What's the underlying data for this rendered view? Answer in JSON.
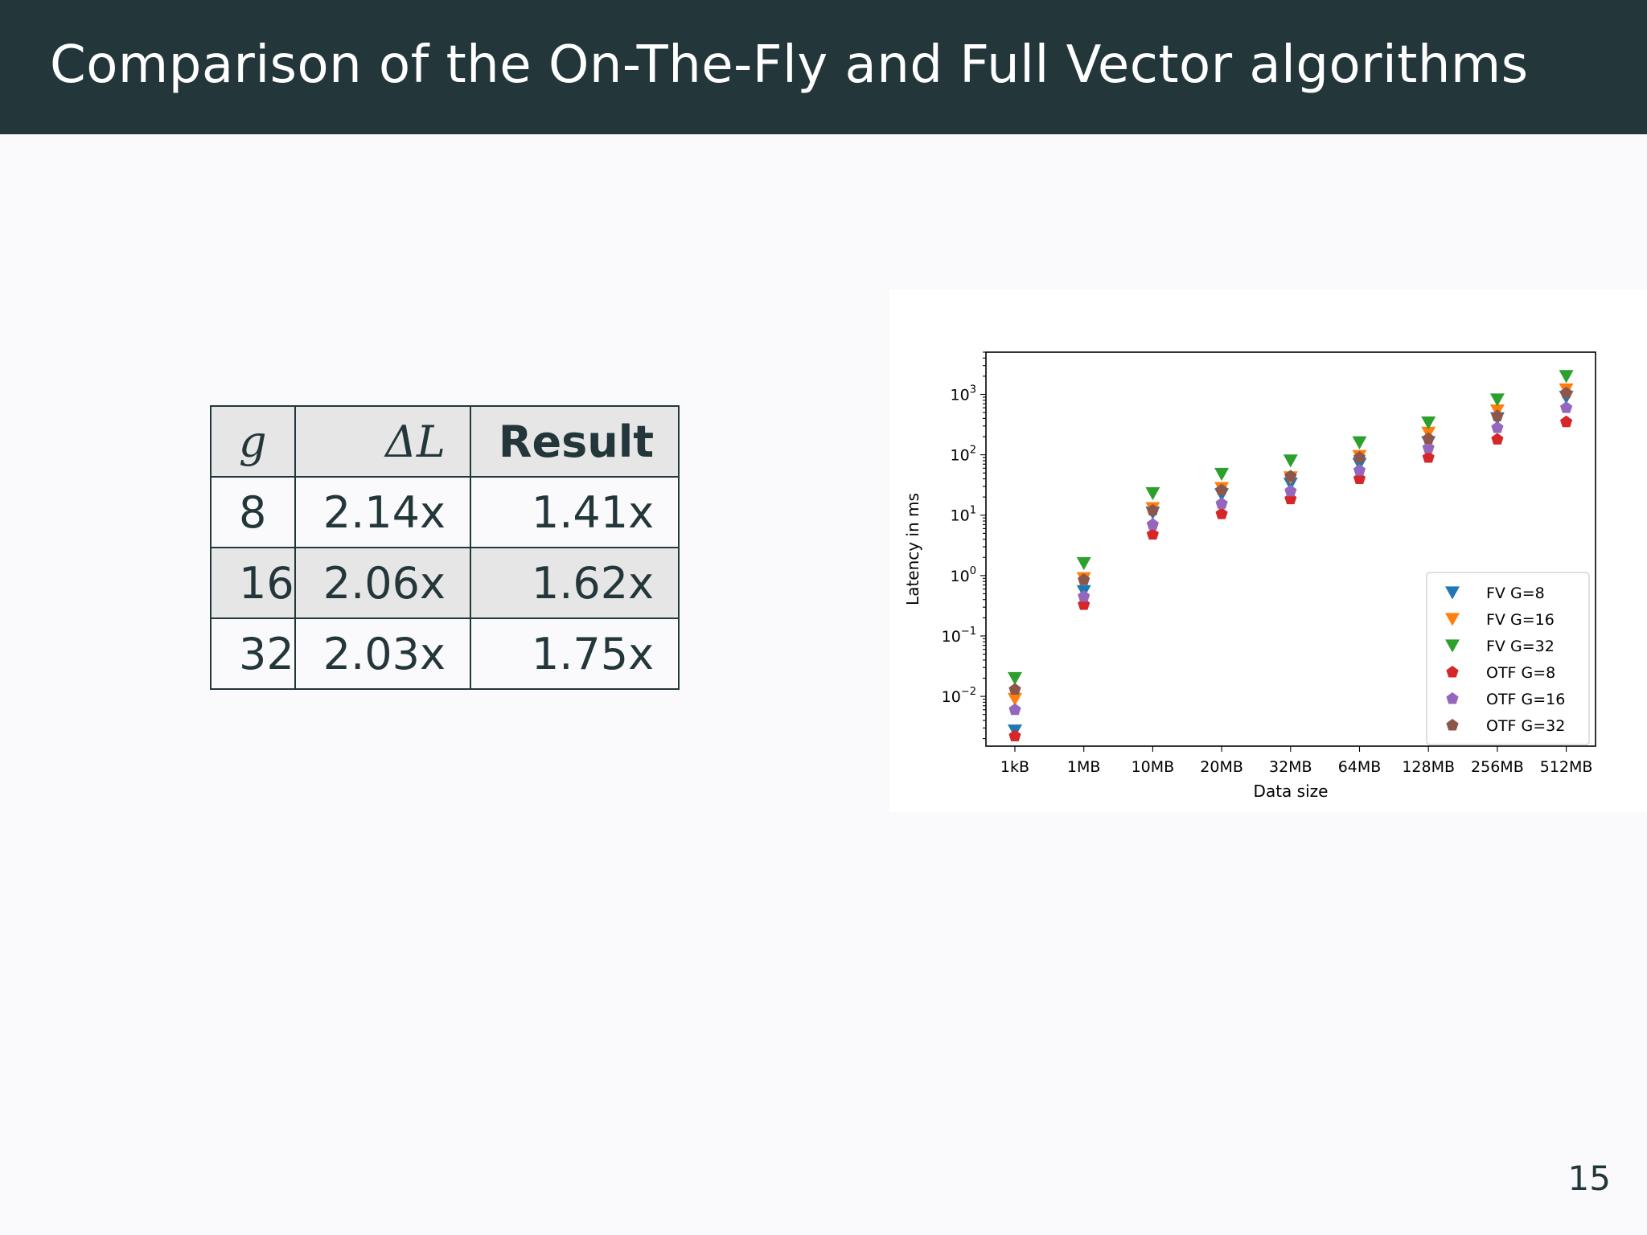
{
  "slide": {
    "title": "Comparison of the On-The-Fly and Full Vector algorithms",
    "page_number": "15"
  },
  "table": {
    "headers": [
      "g",
      "ΔL",
      "Result"
    ],
    "rows": [
      [
        "8",
        "2.14x",
        "1.41x"
      ],
      [
        "16",
        "2.06x",
        "1.62x"
      ],
      [
        "32",
        "2.03x",
        "1.75x"
      ]
    ]
  },
  "chart_data": {
    "type": "scatter",
    "xlabel": "Data size",
    "ylabel": "Latency in ms",
    "categories": [
      "1kB",
      "1MB",
      "10MB",
      "20MB",
      "32MB",
      "64MB",
      "128MB",
      "256MB",
      "512MB"
    ],
    "y_scale": "log",
    "ylim": [
      0.0015,
      5000
    ],
    "y_ticks": [
      {
        "base": "10",
        "exp": "−2",
        "value": 0.01
      },
      {
        "base": "10",
        "exp": "−1",
        "value": 0.1
      },
      {
        "base": "10",
        "exp": "0",
        "value": 1
      },
      {
        "base": "10",
        "exp": "1",
        "value": 10
      },
      {
        "base": "10",
        "exp": "2",
        "value": 100
      },
      {
        "base": "10",
        "exp": "3",
        "value": 1000
      }
    ],
    "legend_position": "lower-right",
    "series": [
      {
        "name": "FV G=8",
        "marker": "triangle-down",
        "color": "#1f77b4",
        "values": [
          0.0027,
          0.55,
          11,
          22,
          33,
          70,
          160,
          400,
          900
        ]
      },
      {
        "name": "FV G=16",
        "marker": "triangle-down",
        "color": "#ff7f0e",
        "values": [
          0.009,
          0.9,
          13,
          28,
          42,
          95,
          230,
          540,
          1200
        ]
      },
      {
        "name": "FV G=32",
        "marker": "triangle-down",
        "color": "#2ca02c",
        "values": [
          0.02,
          1.6,
          23,
          48,
          80,
          160,
          340,
          820,
          2000
        ]
      },
      {
        "name": "OTF G=8",
        "marker": "pentagon",
        "color": "#d62728",
        "values": [
          0.0022,
          0.33,
          4.8,
          10.5,
          18.5,
          40,
          90,
          180,
          350
        ]
      },
      {
        "name": "OTF G=16",
        "marker": "pentagon",
        "color": "#9467bd",
        "values": [
          0.006,
          0.45,
          7,
          15.5,
          25,
          55,
          130,
          280,
          600
        ]
      },
      {
        "name": "OTF G=32",
        "marker": "pentagon",
        "color": "#8c564b",
        "values": [
          0.013,
          0.85,
          12,
          26,
          44,
          90,
          185,
          440,
          1050
        ]
      }
    ]
  }
}
